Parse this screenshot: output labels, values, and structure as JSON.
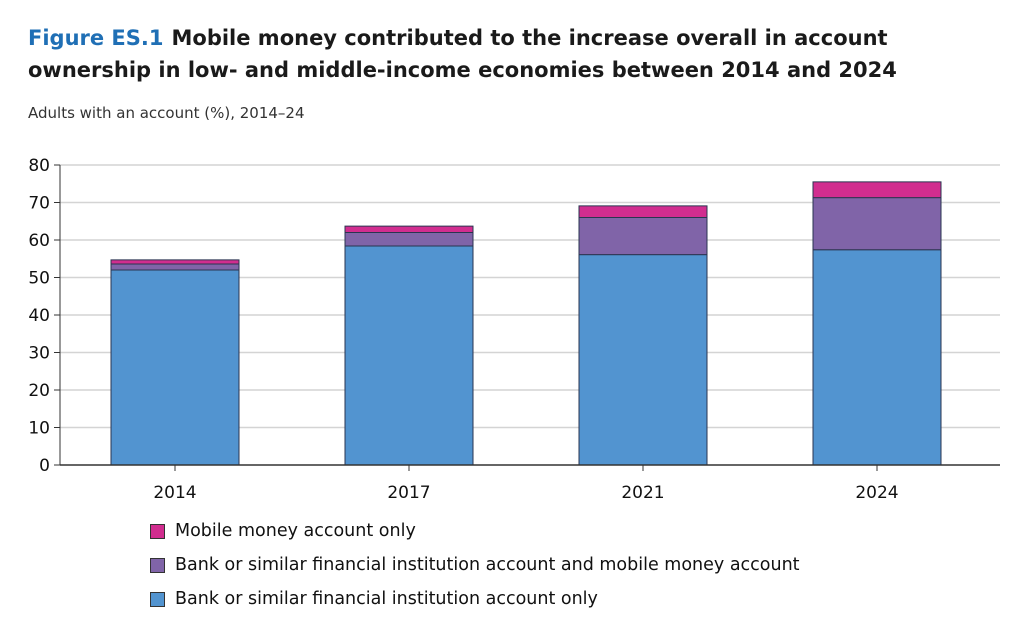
{
  "chart_data": {
    "type": "bar",
    "stacked": true,
    "figure_label": "Figure ES.1",
    "title": "Mobile money contributed to the increase overall in account ownership in low- and middle-income economies between 2014 and 2024",
    "subtitle": "Adults with an account (%), 2014–24",
    "xlabel": "",
    "ylabel": "",
    "ylim": [
      0,
      80
    ],
    "yticks": [
      0,
      10,
      20,
      30,
      40,
      50,
      60,
      70,
      80
    ],
    "grid": true,
    "legend_position": "bottom",
    "categories": [
      "2014",
      "2017",
      "2021",
      "2024"
    ],
    "series": [
      {
        "name": "Bank or similar financial institution account only",
        "color": "#5294d0",
        "values": [
          52,
          58.4,
          56.1,
          57.4
        ]
      },
      {
        "name": "Bank or similar financial institution account and mobile money account",
        "color": "#8064a8",
        "values": [
          1.6,
          3.6,
          9.9,
          13.9
        ]
      },
      {
        "name": "Mobile money account only",
        "color": "#d12d8f",
        "values": [
          1.1,
          1.7,
          3.1,
          4.2
        ]
      }
    ],
    "legend_order": [
      2,
      1,
      0
    ]
  }
}
